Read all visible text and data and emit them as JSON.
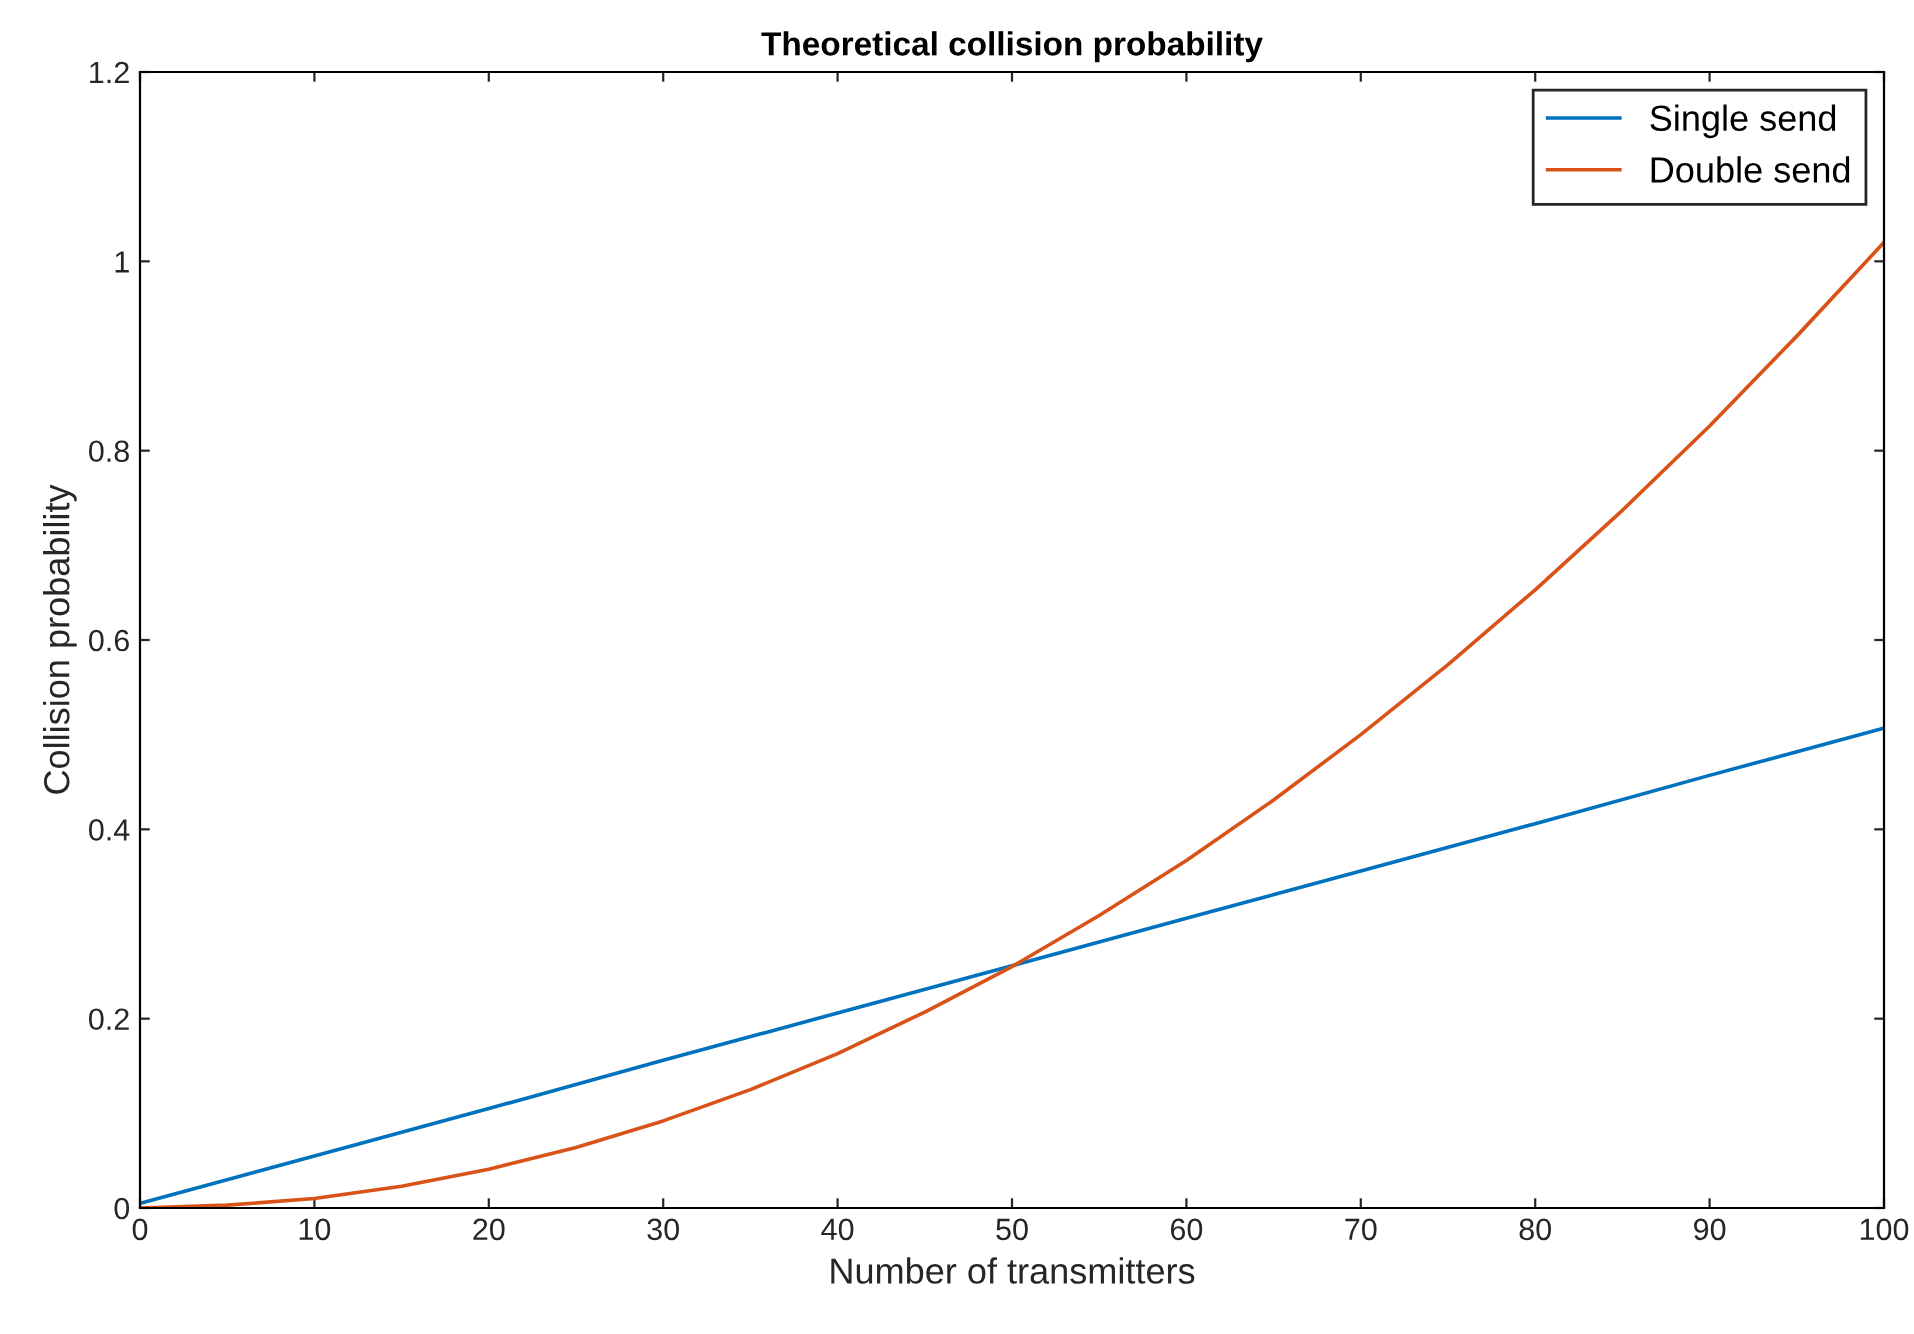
{
  "chart_data": {
    "type": "line",
    "title": "Theoretical collision probability",
    "xlabel": "Number of transmitters",
    "ylabel": "Collision probability",
    "series": [
      {
        "name": "Single send",
        "color": "#0072bd",
        "x": [
          0,
          10,
          20,
          30,
          40,
          50,
          60,
          70,
          80,
          90,
          100
        ],
        "values": [
          0.005,
          0.055,
          0.105,
          0.156,
          0.206,
          0.256,
          0.306,
          0.356,
          0.406,
          0.457,
          0.507
        ]
      },
      {
        "name": "Double send",
        "color": "#d95319",
        "x": [
          0,
          5,
          10,
          15,
          20,
          25,
          30,
          35,
          40,
          45,
          50,
          55,
          60,
          65,
          70,
          75,
          80,
          85,
          90,
          95,
          100
        ],
        "values": [
          0,
          0.003,
          0.01,
          0.023,
          0.041,
          0.064,
          0.092,
          0.125,
          0.163,
          0.207,
          0.255,
          0.309,
          0.367,
          0.431,
          0.5,
          0.574,
          0.653,
          0.737,
          0.826,
          0.921,
          1.02
        ]
      }
    ],
    "xlim": [
      0,
      100
    ],
    "xticks": [
      0,
      10,
      20,
      30,
      40,
      50,
      60,
      70,
      80,
      90,
      100
    ],
    "ylim": [
      0,
      1.2
    ],
    "yticks": [
      0,
      0.2,
      0.4,
      0.6,
      0.8,
      1,
      1.2
    ],
    "grid": false,
    "legend": "top right",
    "marker": "none",
    "line_style": "solid"
  }
}
